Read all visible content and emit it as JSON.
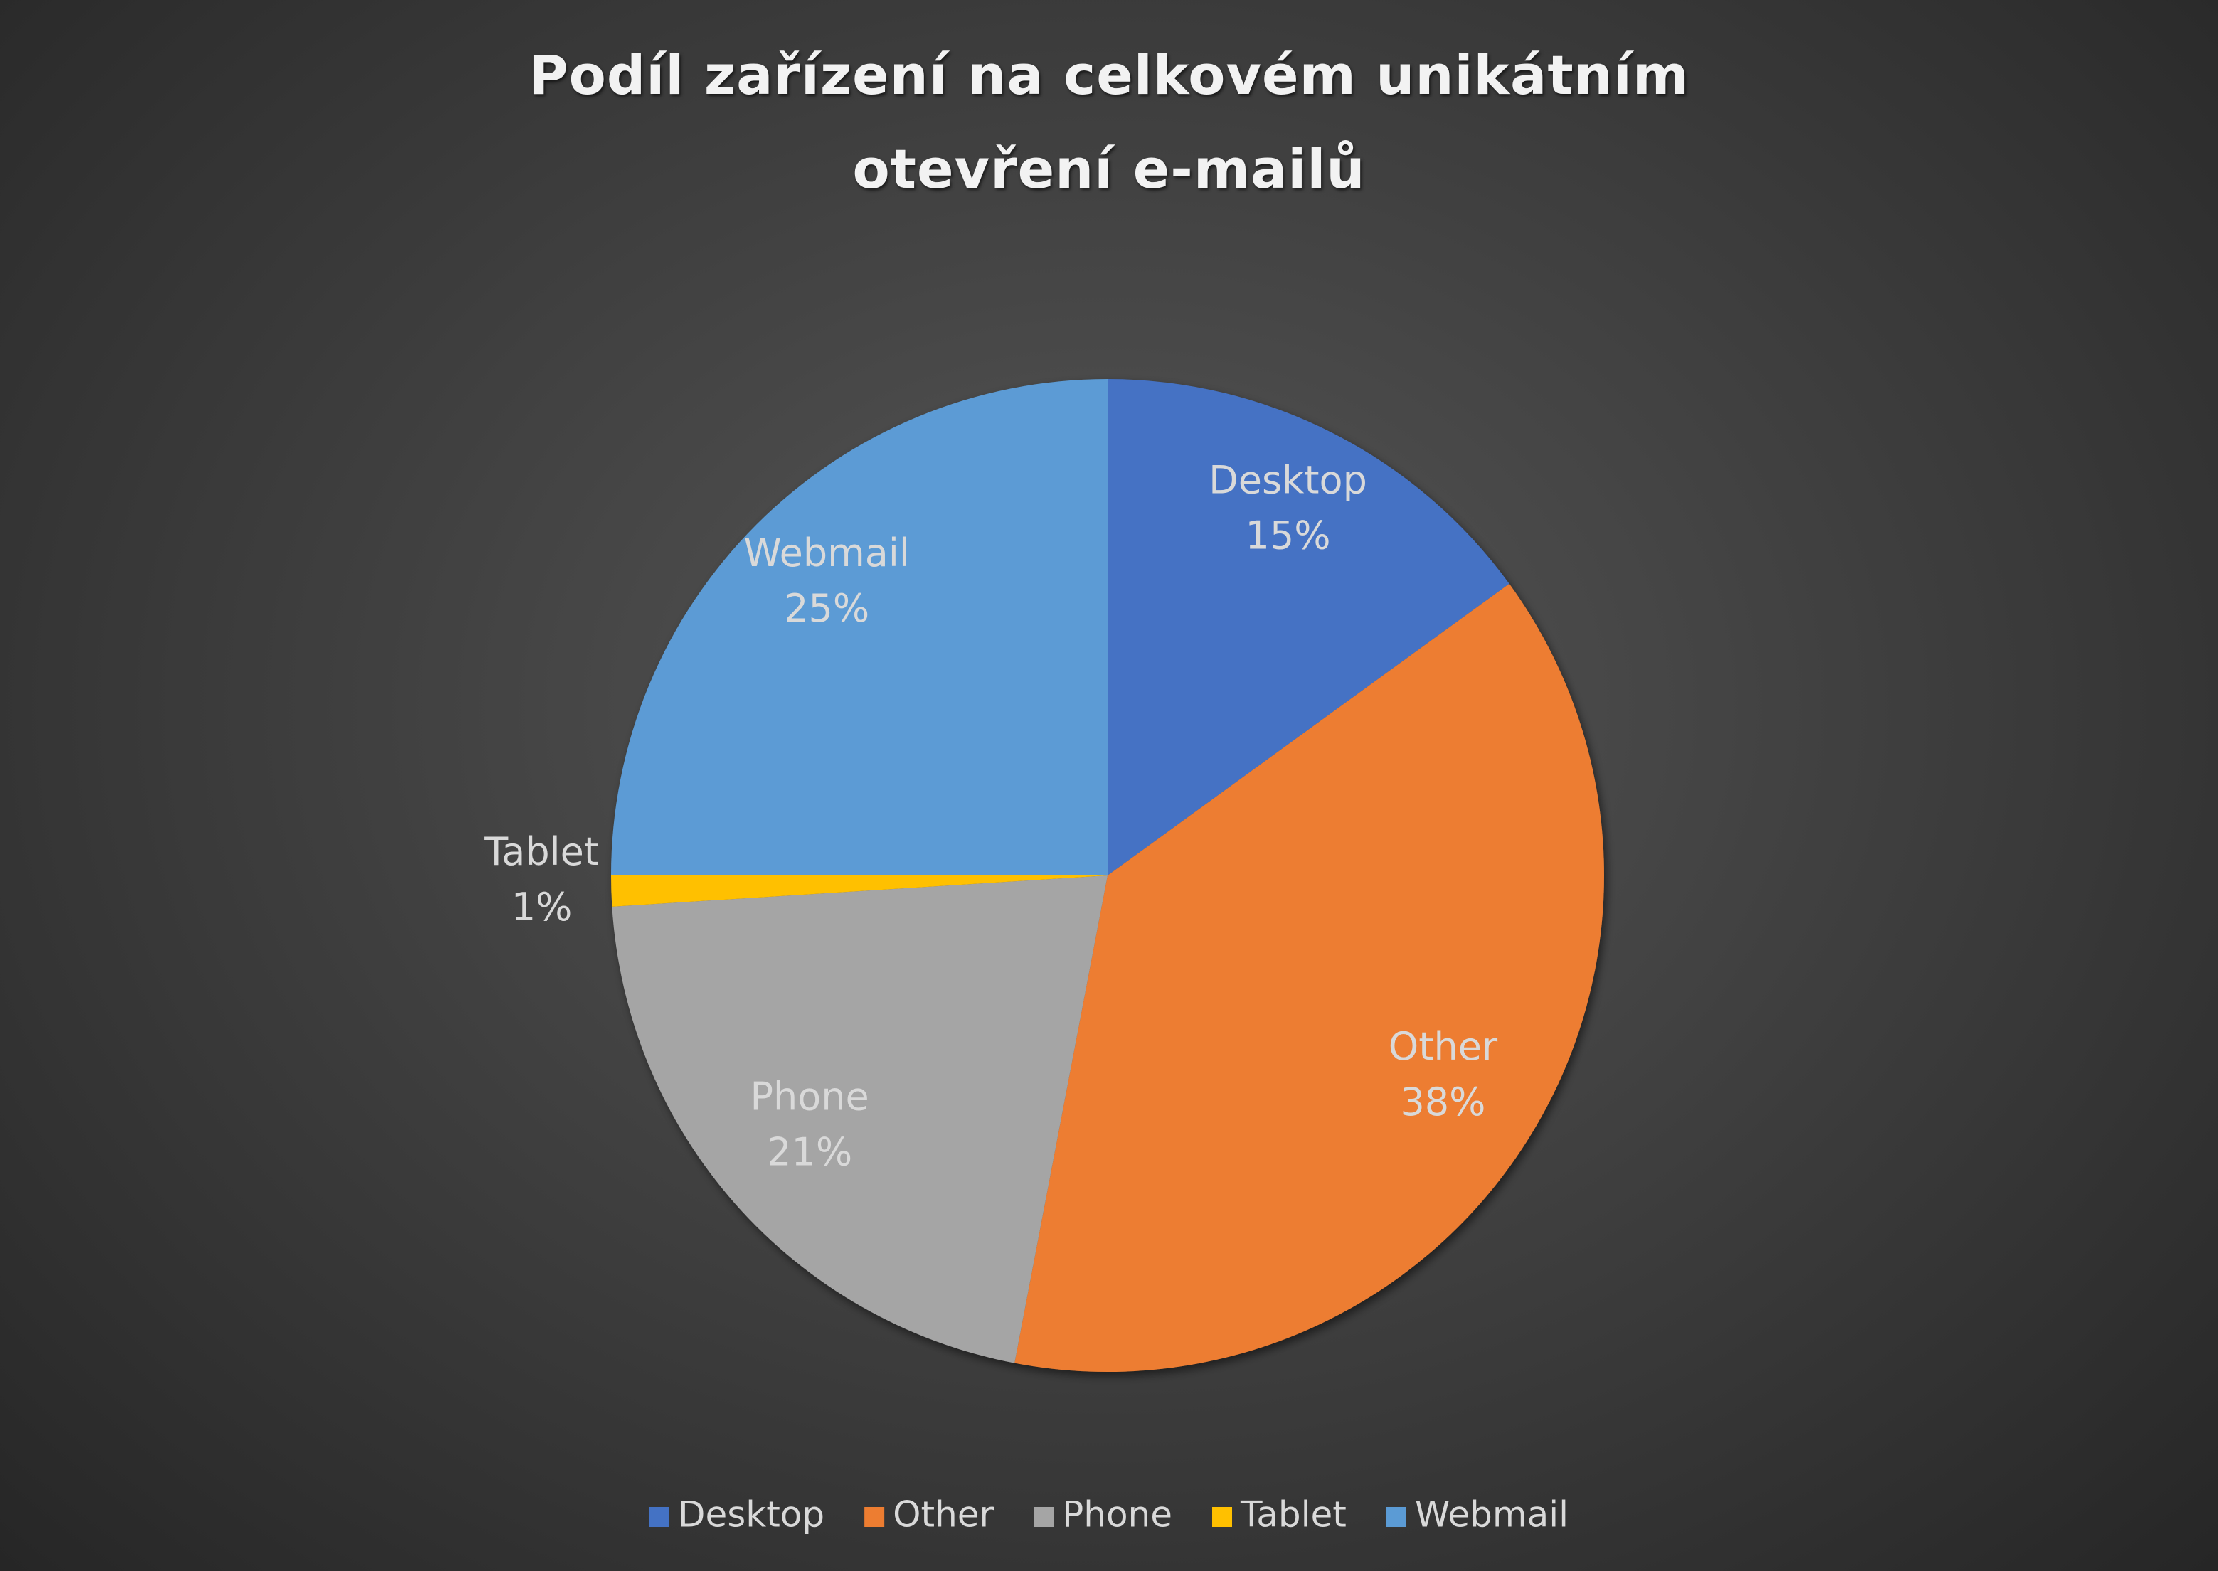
{
  "chart_data": {
    "type": "pie",
    "title": "Podíl zařízení na celkovém unikátním otevření e-mailů",
    "categories": [
      "Desktop",
      "Other",
      "Phone",
      "Tablet",
      "Webmail"
    ],
    "values": [
      15,
      38,
      21,
      1,
      25
    ],
    "value_labels": [
      "15%",
      "38%",
      "21%",
      "1%",
      "25%"
    ],
    "colors": [
      "#4472c4",
      "#ed7d31",
      "#a5a5a5",
      "#ffc000",
      "#5b9bd5"
    ],
    "legend": "bottom"
  }
}
